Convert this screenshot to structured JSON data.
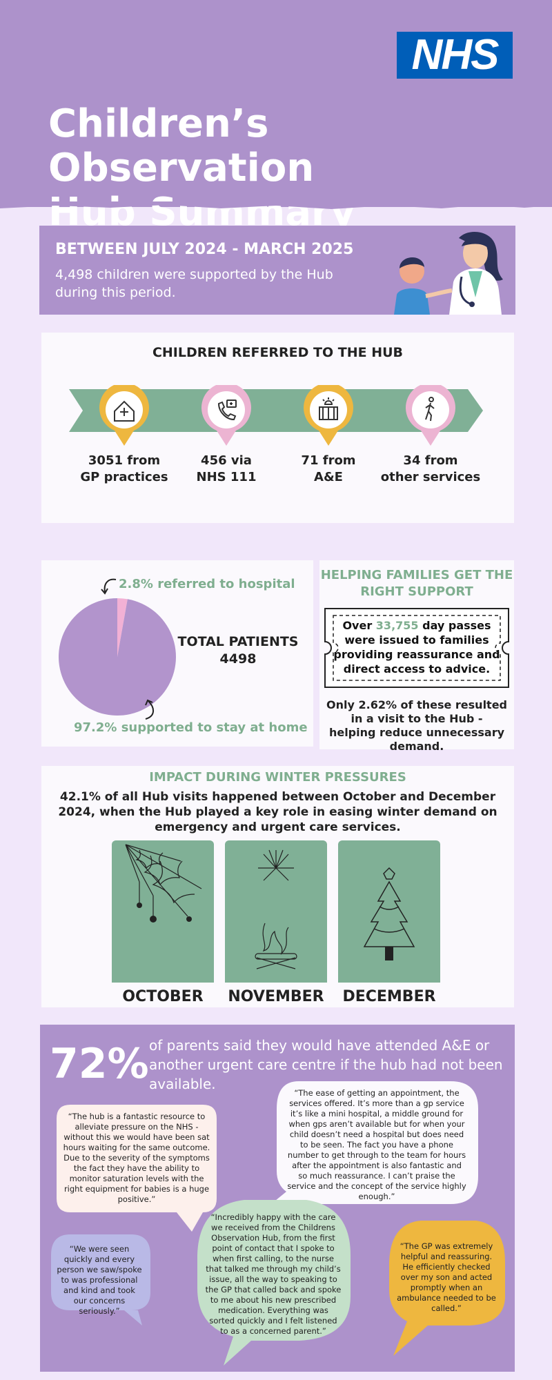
{
  "header": {
    "logo": "NHS",
    "title_line1": "Children’s Observation",
    "title_line2": "Hub Summary"
  },
  "banner": {
    "heading": "BETWEEN JULY 2024 - MARCH 2025",
    "text": "4,498 children were supported by the Hub during this period."
  },
  "referrals": {
    "title": "CHILDREN REFERRED TO THE HUB",
    "items": [
      {
        "line1": "3051 from",
        "line2": "GP practices",
        "icon": "hospital-icon",
        "pin": "#eeb73f"
      },
      {
        "line1": "456 via",
        "line2": "NHS 111",
        "icon": "phone-icon",
        "pin": "#ecb4d2"
      },
      {
        "line1": "71 from",
        "line2": "A&E",
        "icon": "emergency-icon",
        "pin": "#eeb73f"
      },
      {
        "line1": "34 from",
        "line2": "other services",
        "icon": "walking-person-icon",
        "pin": "#ecb4d2"
      }
    ]
  },
  "outcomes": {
    "hospital_label": "2.8% referred to hospital",
    "home_label": "97.2% supported to stay at home",
    "total_line1": "TOTAL PATIENTS",
    "total_line2": "4498",
    "colors": {
      "home": "#b294cc",
      "hospital": "#f2b1d5"
    }
  },
  "chart_data": {
    "type": "pie",
    "categories": [
      "referred to hospital",
      "supported to stay at home"
    ],
    "values": [
      2.8,
      97.2
    ]
  },
  "help": {
    "title": "HELPING FAMILIES GET THE RIGHT SUPPORT",
    "ticket_pre": "Over ",
    "ticket_highlight": "33,755",
    "ticket_post": " day passes were issued to families providing reassurance and direct access to advice.",
    "footer": "Only 2.62% of these resulted in a visit to the Hub - helping reduce unnecessary demand."
  },
  "winter": {
    "title": "IMPACT DURING WINTER PRESSURES",
    "text": "42.1% of all Hub visits happened between October and December 2024, when the Hub played a key role in easing winter demand on emergency and urgent care services.",
    "months": [
      "OCTOBER",
      "NOVEMBER",
      "DECEMBER"
    ]
  },
  "survey": {
    "percent": "72%",
    "text": "of parents said they would have attended A&E or another urgent care centre if the hub had not been available.",
    "quotes": [
      "“The hub is a fantastic resource to alleviate pressure on the NHS - without this we would have been sat hours waiting for the same outcome. Due to the severity of the symptoms the fact they have the ability to monitor saturation levels with the right equipment for babies is a huge positive.”",
      "“The ease of getting an appointment, the services offered. It’s more than a gp service it’s like a mini hospital, a middle ground for when gps aren’t available but for when your child doesn’t need a hospital but does need to be seen. The fact you have a phone number to get through to the team for hours after the appointment is also fantastic and so much reassurance. I can’t praise the service and the concept of the service highly enough.”",
      "“We were seen quickly and every person we saw/spoke to was professional and kind and took our concerns seriously.”",
      "“Incredibly happy with the care we received from the Childrens Observation Hub, from the first point of contact that I spoke to when first calling, to the nurse that talked me through my child’s issue, all the way to speaking to the GP that called back and spoke to me about his new prescribed medication. Everything was sorted quickly and I felt listened to as a concerned parent.”",
      "“The GP was extremely helpful and reassuring. He efficiently checked over my son and acted promptly when an ambulance needed to be called.”"
    ]
  }
}
